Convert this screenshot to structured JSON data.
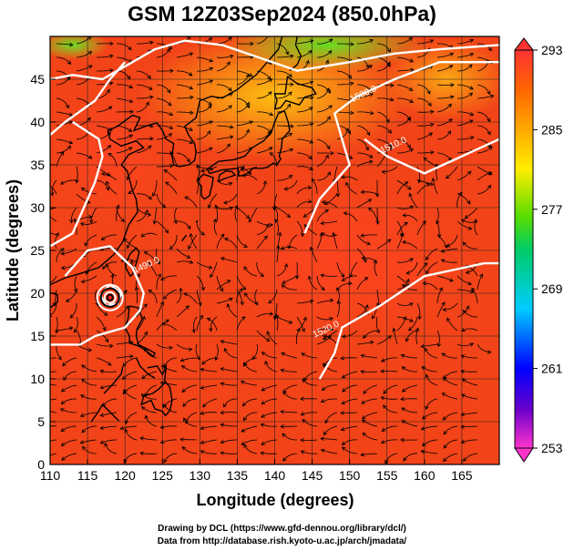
{
  "title": "GSM 12Z03Sep2024 (850.0hPa)",
  "xlabel": "Longitude (degrees)",
  "ylabel": "Latitude  (degrees)",
  "credits": [
    "Drawing by DCL (https://www.gfd-dennou.org/library/dcl/)",
    "Data from http://database.rish.kyoto-u.ac.jp/arch/jmadata/"
  ],
  "chart_data": {
    "type": "heatmap",
    "title": "GSM 12Z03Sep2024 (850.0hPa)",
    "xlabel": "Longitude (degrees)",
    "ylabel": "Latitude  (degrees)",
    "xlim": [
      110,
      170
    ],
    "ylim": [
      0,
      50
    ],
    "x_ticks": [
      110,
      115,
      120,
      125,
      130,
      135,
      140,
      145,
      150,
      155,
      160,
      165
    ],
    "y_ticks": [
      0,
      5,
      10,
      15,
      20,
      25,
      30,
      35,
      40,
      45
    ],
    "grid": true,
    "colorbar": {
      "min": 253,
      "max": 293,
      "ticks": [
        253,
        261,
        269,
        277,
        285,
        293
      ],
      "colors": [
        "#ff33cc",
        "#0000ff",
        "#00ccff",
        "#22dd22",
        "#ffee00",
        "#ff9900",
        "#ff3300"
      ]
    },
    "contour_labels": [
      {
        "text": "1500.0",
        "lon": 152,
        "lat": 43
      },
      {
        "text": "1510.0",
        "lon": 156,
        "lat": 37
      },
      {
        "text": "1520.0",
        "lon": 147,
        "lat": 15.5
      },
      {
        "text": "1490.0",
        "lon": 123,
        "lat": 23
      }
    ]
  }
}
